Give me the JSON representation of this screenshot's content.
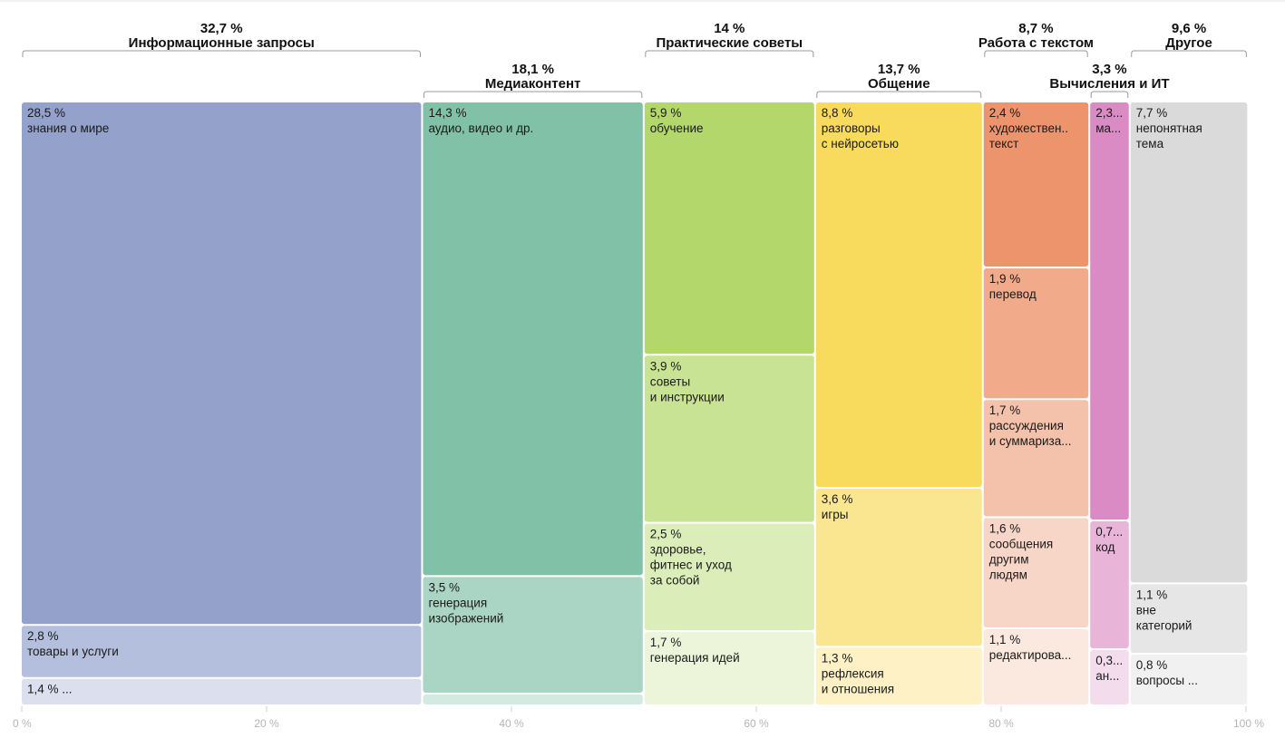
{
  "chart_data": {
    "type": "treemap",
    "x_ticks": [
      "0 %",
      "20 %",
      "40 %",
      "60 %",
      "80 %",
      "100 %"
    ],
    "groups": [
      {
        "name": "Информационные запросы",
        "pct_label": "32,7 %",
        "value": 32.7,
        "color": "#93a1cb",
        "label_row": "top",
        "items": [
          {
            "pct": "28,5 %",
            "label": [
              "знания о мире"
            ],
            "value": 28.5,
            "color": "#93a1cb"
          },
          {
            "pct": "2,8 %",
            "label": [
              "товары и услуги"
            ],
            "value": 2.8,
            "color": "#b4bedd"
          },
          {
            "pct": "1,4 % ...",
            "label": [],
            "value": 1.4,
            "color": "#dbdfee"
          }
        ]
      },
      {
        "name": "Медиаконтент",
        "pct_label": "18,1 %",
        "value": 18.1,
        "color": "#80c1a8",
        "label_row": "bottom",
        "items": [
          {
            "pct": "14,3 %",
            "label": [
              "аудио, видео и др."
            ],
            "value": 14.3,
            "color": "#80c1a8"
          },
          {
            "pct": "3,5 %",
            "label": [
              "генерация",
              "изображений"
            ],
            "value": 3.5,
            "color": "#aad5c4"
          },
          {
            "pct": "",
            "label": [],
            "value": 0.3,
            "color": "#d3eae1"
          }
        ]
      },
      {
        "name": "Практические советы",
        "pct_label": "14 %",
        "value": 14,
        "color": "#b3d76b",
        "label_row": "top",
        "items": [
          {
            "pct": "5,9 %",
            "label": [
              "обучение"
            ],
            "value": 5.9,
            "color": "#b3d76b"
          },
          {
            "pct": "3,9 %",
            "label": [
              "советы",
              "и инструкции"
            ],
            "value": 3.9,
            "color": "#c9e394"
          },
          {
            "pct": "2,5 %",
            "label": [
              "здоровье,",
              "фитнес и уход",
              "за собой"
            ],
            "value": 2.5,
            "color": "#dbedb8"
          },
          {
            "pct": "1,7 %",
            "label": [
              "генерация идей"
            ],
            "value": 1.7,
            "color": "#ecf5da"
          }
        ]
      },
      {
        "name": "Общение",
        "pct_label": "13,7 %",
        "value": 13.7,
        "color": "#f8da5c",
        "label_row": "bottom",
        "items": [
          {
            "pct": "8,8 %",
            "label": [
              "разговоры",
              "с нейросетью"
            ],
            "value": 8.8,
            "color": "#f8da5c"
          },
          {
            "pct": "3,6 %",
            "label": [
              "игры"
            ],
            "value": 3.6,
            "color": "#fae591"
          },
          {
            "pct": "1,3 %",
            "label": [
              "рефлексия",
              "и отношения"
            ],
            "value": 1.3,
            "color": "#fdf1c5"
          }
        ]
      },
      {
        "name": "Работа с текстом",
        "pct_label": "8,7 %",
        "value": 8.7,
        "color": "#ee946c",
        "label_row": "top",
        "items": [
          {
            "pct": "2,4 %",
            "label": [
              "художествен..",
              "текст"
            ],
            "value": 2.4,
            "color": "#ee946c"
          },
          {
            "pct": "1,9 %",
            "label": [
              "перевод"
            ],
            "value": 1.9,
            "color": "#f1ab8b"
          },
          {
            "pct": "1,7 %",
            "label": [
              "рассуждения",
              "и суммариза..."
            ],
            "value": 1.7,
            "color": "#f4c1aa"
          },
          {
            "pct": "1,6 %",
            "label": [
              "сообщения",
              "другим",
              "людям"
            ],
            "value": 1.6,
            "color": "#f8d6c7"
          },
          {
            "pct": "1,1 %",
            "label": [
              "редактирова..."
            ],
            "value": 1.1,
            "color": "#fbe8df"
          }
        ]
      },
      {
        "name": "Вычисления и ИТ",
        "pct_label": "3,3 %",
        "value": 3.3,
        "color": "#db8bc4",
        "label_row": "bottom",
        "items": [
          {
            "pct": "2,3...",
            "label": [
              "ма..."
            ],
            "value": 2.3,
            "color": "#db8bc4"
          },
          {
            "pct": "0,7...",
            "label": [
              "код"
            ],
            "value": 0.7,
            "color": "#e8b5d9"
          },
          {
            "pct": "0,3...",
            "label": [
              "ан..."
            ],
            "value": 0.3,
            "color": "#f3dcec"
          }
        ]
      },
      {
        "name": "Другое",
        "pct_label": "9,6 %",
        "value": 9.6,
        "color": "#dadada",
        "label_row": "top",
        "items": [
          {
            "pct": "7,7 %",
            "label": [
              "непонятная",
              "тема"
            ],
            "value": 7.7,
            "color": "#dadada"
          },
          {
            "pct": "1,1 %",
            "label": [
              "вне",
              "категорий"
            ],
            "value": 1.1,
            "color": "#e6e6e6"
          },
          {
            "pct": "0,8 %",
            "label": [
              "вопросы ..."
            ],
            "value": 0.8,
            "color": "#f1f1f1"
          }
        ]
      }
    ]
  }
}
